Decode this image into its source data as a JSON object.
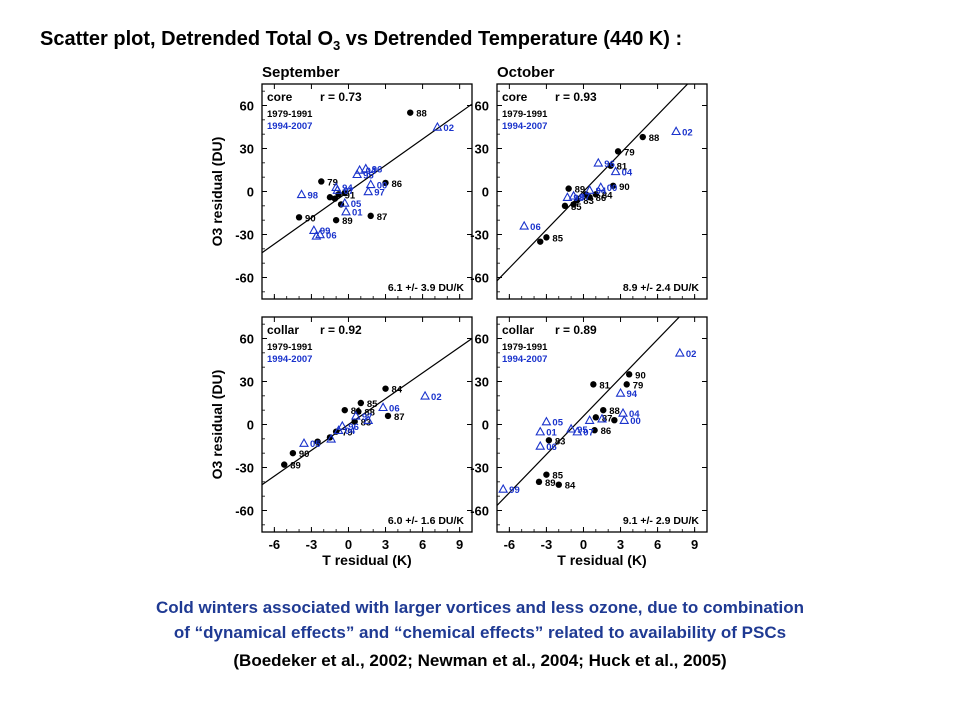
{
  "title": {
    "prefix": "Scatter plot, Detrended Total O",
    "sub": "3",
    "suffix": " vs Detrended Temperature (440 K) :"
  },
  "colors": {
    "period1": "#000000",
    "period2": "#1a33cc",
    "caption": "#1f3a93"
  },
  "shared_axes": {
    "xlabel": "T residual (K)",
    "ylabel": "O3 residual (DU)",
    "xticks": [
      "-6",
      "-3",
      "0",
      "3",
      "6",
      "9"
    ],
    "yticks": [
      "60",
      "30",
      "0",
      "-30",
      "-60"
    ]
  },
  "chart_data": [
    {
      "type": "scatter",
      "column_title": "September",
      "region": "core",
      "r": "r = 0.73",
      "periods": [
        "1979-1991",
        "1994-2007"
      ],
      "slope_text": "6.1 +/- 3.9 DU/K",
      "xlim": [
        -7,
        10
      ],
      "ylim": [
        -75,
        75
      ],
      "fit_line": [
        [
          -7,
          -42.7
        ],
        [
          10,
          61.0
        ]
      ],
      "series": [
        {
          "name": "1979-1991",
          "marker": "circle",
          "points": [
            {
              "x": 5.0,
              "y": 55,
              "label": "88"
            },
            {
              "x": -2.2,
              "y": 7,
              "label": "79"
            },
            {
              "x": 3.0,
              "y": 6,
              "label": "86"
            },
            {
              "x": -0.8,
              "y": -2,
              "label": "91"
            },
            {
              "x": -4.0,
              "y": -18,
              "label": "90"
            },
            {
              "x": 1.8,
              "y": -17,
              "label": "87"
            },
            {
              "x": -1.0,
              "y": -20,
              "label": "89"
            },
            {
              "x": -1.1,
              "y": -5,
              "label": ""
            },
            {
              "x": -0.6,
              "y": -9,
              "label": ""
            },
            {
              "x": -0.3,
              "y": -1,
              "label": ""
            },
            {
              "x": -1.5,
              "y": -4,
              "label": ""
            }
          ]
        },
        {
          "name": "1994-2007",
          "marker": "triangle",
          "points": [
            {
              "x": 7.2,
              "y": 45,
              "label": "02"
            },
            {
              "x": 1.4,
              "y": 16,
              "label": "96"
            },
            {
              "x": 0.9,
              "y": 15,
              "label": "04"
            },
            {
              "x": 0.7,
              "y": 12,
              "label": "95"
            },
            {
              "x": -1.0,
              "y": 3,
              "label": "94"
            },
            {
              "x": -0.9,
              "y": 1,
              "label": "07"
            },
            {
              "x": -3.8,
              "y": -2,
              "label": "98"
            },
            {
              "x": 1.8,
              "y": 5,
              "label": "00"
            },
            {
              "x": 1.6,
              "y": 0,
              "label": "97"
            },
            {
              "x": -0.3,
              "y": -8,
              "label": "05"
            },
            {
              "x": -0.2,
              "y": -14,
              "label": "01"
            },
            {
              "x": -2.3,
              "y": -30,
              "label": "06"
            },
            {
              "x": -2.8,
              "y": -27,
              "label": "99"
            },
            {
              "x": -2.6,
              "y": -31,
              "label": ""
            }
          ]
        }
      ]
    },
    {
      "type": "scatter",
      "column_title": "October",
      "region": "core",
      "r": "r = 0.93",
      "periods": [
        "1979-1991",
        "1994-2007"
      ],
      "slope_text": "8.9 +/- 2.4 DU/K",
      "xlim": [
        -7,
        10
      ],
      "ylim": [
        -75,
        75
      ],
      "fit_line": [
        [
          -7,
          -62.3
        ],
        [
          10,
          89.0
        ]
      ],
      "series": [
        {
          "name": "1979-1991",
          "marker": "circle",
          "points": [
            {
              "x": 4.8,
              "y": 38,
              "label": "88"
            },
            {
              "x": 2.8,
              "y": 28,
              "label": "79"
            },
            {
              "x": 2.2,
              "y": 18,
              "label": "81"
            },
            {
              "x": 2.4,
              "y": 4,
              "label": "90"
            },
            {
              "x": 1.0,
              "y": -2,
              "label": "84"
            },
            {
              "x": 0.5,
              "y": -4,
              "label": "86"
            },
            {
              "x": -0.5,
              "y": -6,
              "label": "83"
            },
            {
              "x": -1.5,
              "y": -10,
              "label": "85"
            },
            {
              "x": -3.0,
              "y": -32,
              "label": "85"
            },
            {
              "x": -3.5,
              "y": -35,
              "label": ""
            },
            {
              "x": -1.2,
              "y": 2,
              "label": "89"
            },
            {
              "x": -0.8,
              "y": -9,
              "label": ""
            },
            {
              "x": 0.2,
              "y": -2,
              "label": ""
            }
          ]
        },
        {
          "name": "1994-2007",
          "marker": "triangle",
          "points": [
            {
              "x": 7.5,
              "y": 42,
              "label": "02"
            },
            {
              "x": 1.2,
              "y": 20,
              "label": "96"
            },
            {
              "x": 2.6,
              "y": 14,
              "label": "04"
            },
            {
              "x": -4.8,
              "y": -24,
              "label": "06"
            },
            {
              "x": 1.4,
              "y": 3,
              "label": "00"
            },
            {
              "x": -0.8,
              "y": -3,
              "label": "97"
            },
            {
              "x": 0.5,
              "y": 1,
              "label": "94"
            },
            {
              "x": -1.3,
              "y": -4,
              "label": "98"
            }
          ]
        }
      ]
    },
    {
      "type": "scatter",
      "column_title": "",
      "region": "collar",
      "r": "r = 0.92",
      "periods": [
        "1979-1991",
        "1994-2007"
      ],
      "slope_text": "6.0 +/- 1.6 DU/K",
      "xlim": [
        -7,
        10
      ],
      "ylim": [
        -75,
        75
      ],
      "fit_line": [
        [
          -7,
          -42.0
        ],
        [
          10,
          60.0
        ]
      ],
      "series": [
        {
          "name": "1979-1991",
          "marker": "circle",
          "points": [
            {
              "x": 3.0,
              "y": 25,
              "label": "84"
            },
            {
              "x": 3.2,
              "y": 6,
              "label": "87"
            },
            {
              "x": 1.0,
              "y": 15,
              "label": "85"
            },
            {
              "x": 0.8,
              "y": 9,
              "label": "88"
            },
            {
              "x": 0.5,
              "y": 2,
              "label": "83"
            },
            {
              "x": -0.3,
              "y": 10,
              "label": "81"
            },
            {
              "x": -1.0,
              "y": -5,
              "label": "79"
            },
            {
              "x": -2.5,
              "y": -12,
              "label": ""
            },
            {
              "x": -4.5,
              "y": -20,
              "label": "90"
            },
            {
              "x": -5.2,
              "y": -28,
              "label": "89"
            },
            {
              "x": -1.5,
              "y": -9,
              "label": ""
            }
          ]
        },
        {
          "name": "1994-2007",
          "marker": "triangle",
          "points": [
            {
              "x": 6.2,
              "y": 20,
              "label": "02"
            },
            {
              "x": 2.8,
              "y": 12,
              "label": "06"
            },
            {
              "x": 0.6,
              "y": 6,
              "label": "97"
            },
            {
              "x": -0.5,
              "y": -1,
              "label": "96"
            },
            {
              "x": -0.8,
              "y": -4,
              "label": "04"
            },
            {
              "x": -3.6,
              "y": -13,
              "label": "05"
            },
            {
              "x": 1.6,
              "y": 3,
              "label": ""
            },
            {
              "x": -1.4,
              "y": -10,
              "label": ""
            }
          ]
        }
      ]
    },
    {
      "type": "scatter",
      "column_title": "",
      "region": "collar",
      "r": "r = 0.89",
      "periods": [
        "1979-1991",
        "1994-2007"
      ],
      "slope_text": "9.1 +/- 2.9 DU/K",
      "xlim": [
        -7,
        10
      ],
      "ylim": [
        -75,
        75
      ],
      "fit_line": [
        [
          -7,
          -56.5
        ],
        [
          10,
          95.0
        ]
      ],
      "series": [
        {
          "name": "1979-1991",
          "marker": "circle",
          "points": [
            {
              "x": 3.7,
              "y": 35,
              "label": "90"
            },
            {
              "x": 3.5,
              "y": 28,
              "label": "79"
            },
            {
              "x": 0.8,
              "y": 28,
              "label": "81"
            },
            {
              "x": 1.6,
              "y": 10,
              "label": "88"
            },
            {
              "x": 1.0,
              "y": 5,
              "label": "87"
            },
            {
              "x": 0.9,
              "y": -4,
              "label": "86"
            },
            {
              "x": -2.8,
              "y": -11,
              "label": "83"
            },
            {
              "x": -3.0,
              "y": -35,
              "label": "85"
            },
            {
              "x": -3.6,
              "y": -40,
              "label": "89"
            },
            {
              "x": -2.0,
              "y": -42,
              "label": "84"
            },
            {
              "x": 2.5,
              "y": 3,
              "label": ""
            }
          ]
        },
        {
          "name": "1994-2007",
          "marker": "triangle",
          "points": [
            {
              "x": 7.8,
              "y": 50,
              "label": "02"
            },
            {
              "x": 3.0,
              "y": 22,
              "label": "94"
            },
            {
              "x": 3.2,
              "y": 8,
              "label": "04"
            },
            {
              "x": 3.3,
              "y": 3,
              "label": "00"
            },
            {
              "x": -3.0,
              "y": 2,
              "label": "05"
            },
            {
              "x": -3.5,
              "y": -5,
              "label": "01"
            },
            {
              "x": -1.0,
              "y": -3,
              "label": "95"
            },
            {
              "x": -0.5,
              "y": -5,
              "label": "07"
            },
            {
              "x": -3.5,
              "y": -15,
              "label": "06"
            },
            {
              "x": -6.5,
              "y": -45,
              "label": "99"
            },
            {
              "x": 0.5,
              "y": 3,
              "label": ""
            },
            {
              "x": 1.5,
              "y": 4,
              "label": ""
            }
          ]
        }
      ]
    }
  ],
  "caption": {
    "line1": "Cold winters associated with larger vortices and less ozone, due to combination",
    "line2": "of “dynamical effects” and “chemical effects” related to availability of PSCs",
    "line3": "(Boedeker et al., 2002; Newman et al., 2004; Huck et al., 2005)"
  }
}
